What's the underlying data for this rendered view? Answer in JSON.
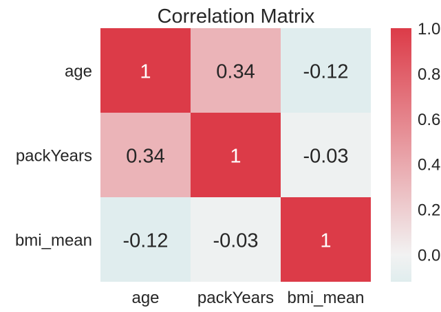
{
  "chart_data": {
    "type": "heatmap",
    "title": "Correlation Matrix",
    "rows": [
      "age",
      "packYears",
      "bmi_mean"
    ],
    "columns": [
      "age",
      "packYears",
      "bmi_mean"
    ],
    "values": [
      [
        1,
        0.34,
        -0.12
      ],
      [
        0.34,
        1,
        -0.03
      ],
      [
        -0.12,
        -0.03,
        1
      ]
    ],
    "annotations": [
      [
        "1",
        "0.34",
        "-0.12"
      ],
      [
        "0.34",
        "1",
        "-0.03"
      ],
      [
        "-0.12",
        "-0.03",
        "1"
      ]
    ],
    "colorbar": {
      "range": [
        -0.12,
        1.0
      ],
      "ticks": [
        0.0,
        0.2,
        0.4,
        0.6,
        0.8,
        1.0
      ],
      "tick_labels": [
        "0.0",
        "0.2",
        "0.4",
        "0.6",
        "0.8",
        "1.0"
      ]
    },
    "colors": {
      "low": "#e0edee",
      "center": "#f2f2f2",
      "high": "#dc3b48",
      "light_text": "#ffffff",
      "dark_text": "#262626"
    }
  }
}
